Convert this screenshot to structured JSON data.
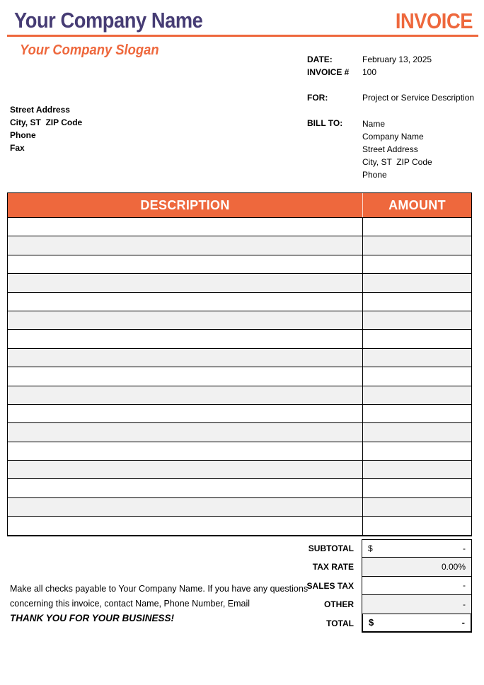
{
  "colors": {
    "accent_orange": "#EE683D",
    "brand_purple": "#463C74",
    "row_shade": "#F1F1F1",
    "table_border": "#000000"
  },
  "header": {
    "company_name": "Your Company Name",
    "invoice_title": "INVOICE",
    "slogan": "Your Company Slogan"
  },
  "meta": {
    "date_label": "DATE:",
    "date_value": "February 13, 2025",
    "invoice_no_label": "INVOICE #",
    "invoice_no_value": "100",
    "for_label": "FOR:",
    "for_value": "Project or Service Description"
  },
  "company_address": {
    "lines": [
      "Street Address",
      "City, ST  ZIP Code",
      "Phone",
      "Fax"
    ]
  },
  "bill_to": {
    "label": "BILL TO:",
    "lines": [
      "Name",
      "Company Name",
      "Street Address",
      "City, ST  ZIP Code",
      "Phone"
    ]
  },
  "table": {
    "headers": [
      "DESCRIPTION",
      "AMOUNT"
    ],
    "row_count": 17,
    "rows": [
      {
        "description": "",
        "amount": ""
      },
      {
        "description": "",
        "amount": ""
      },
      {
        "description": "",
        "amount": ""
      },
      {
        "description": "",
        "amount": ""
      },
      {
        "description": "",
        "amount": ""
      },
      {
        "description": "",
        "amount": ""
      },
      {
        "description": "",
        "amount": ""
      },
      {
        "description": "",
        "amount": ""
      },
      {
        "description": "",
        "amount": ""
      },
      {
        "description": "",
        "amount": ""
      },
      {
        "description": "",
        "amount": ""
      },
      {
        "description": "",
        "amount": ""
      },
      {
        "description": "",
        "amount": ""
      },
      {
        "description": "",
        "amount": ""
      },
      {
        "description": "",
        "amount": ""
      },
      {
        "description": "",
        "amount": ""
      },
      {
        "description": "",
        "amount": ""
      }
    ]
  },
  "totals": {
    "rows": [
      {
        "id": "subtotal",
        "label": "SUBTOTAL",
        "currency": "$",
        "value": "-",
        "shaded": false,
        "bold": false
      },
      {
        "id": "tax-rate",
        "label": "TAX RATE",
        "currency": "",
        "value": "0.00%",
        "shaded": true,
        "bold": false
      },
      {
        "id": "sales-tax",
        "label": "SALES TAX",
        "currency": "",
        "value": "-",
        "shaded": false,
        "bold": false
      },
      {
        "id": "other",
        "label": "OTHER",
        "currency": "",
        "value": "-",
        "shaded": true,
        "bold": false
      },
      {
        "id": "total",
        "label": "TOTAL",
        "currency": "$",
        "value": "-",
        "shaded": false,
        "bold": true
      }
    ]
  },
  "footer": {
    "note_line1": "Make all checks payable to Your Company Name. If you have any questions",
    "note_line2": "concerning this invoice, contact Name, Phone Number, Email",
    "thanks": "THANK YOU FOR YOUR BUSINESS!"
  }
}
